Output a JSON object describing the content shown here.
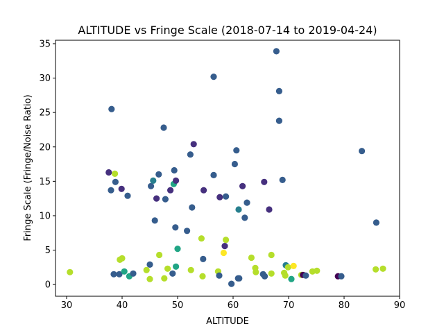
{
  "chart_data": {
    "type": "scatter",
    "title": "ALTITUDE vs Fringe Scale (2018-07-14 to 2019-04-24)",
    "xlabel": "ALTITUDE",
    "ylabel": "Fringe Scale (Fringe/Noise Ratio)",
    "xlim": [
      28,
      90
    ],
    "ylim": [
      -1.7,
      35.5
    ],
    "xticks": [
      30,
      40,
      50,
      60,
      70,
      80,
      90
    ],
    "yticks": [
      0,
      5,
      10,
      15,
      20,
      25,
      30,
      35
    ],
    "grid": false,
    "colormap": "viridis",
    "palette": {
      "purple": "#440154",
      "indigo": "#46307e",
      "blue": "#365d8d",
      "teal": "#277f8e",
      "green": "#21a585",
      "lime": "#b5de2b",
      "yellow": "#fde725"
    },
    "points": [
      {
        "x": 30.6,
        "y": 1.8,
        "c": "lime"
      },
      {
        "x": 37.6,
        "y": 16.3,
        "c": "indigo"
      },
      {
        "x": 38.0,
        "y": 13.7,
        "c": "blue"
      },
      {
        "x": 38.1,
        "y": 25.5,
        "c": "blue"
      },
      {
        "x": 38.5,
        "y": 1.5,
        "c": "blue"
      },
      {
        "x": 38.7,
        "y": 16.1,
        "c": "lime"
      },
      {
        "x": 38.8,
        "y": 14.9,
        "c": "blue"
      },
      {
        "x": 39.5,
        "y": 1.5,
        "c": "blue"
      },
      {
        "x": 39.6,
        "y": 3.6,
        "c": "lime"
      },
      {
        "x": 39.9,
        "y": 13.9,
        "c": "indigo"
      },
      {
        "x": 40.0,
        "y": 3.8,
        "c": "lime"
      },
      {
        "x": 40.4,
        "y": 1.9,
        "c": "green"
      },
      {
        "x": 41.0,
        "y": 12.9,
        "c": "blue"
      },
      {
        "x": 41.3,
        "y": 1.2,
        "c": "green"
      },
      {
        "x": 42.0,
        "y": 1.6,
        "c": "blue"
      },
      {
        "x": 44.4,
        "y": 2.1,
        "c": "lime"
      },
      {
        "x": 45.0,
        "y": 0.8,
        "c": "lime"
      },
      {
        "x": 45.0,
        "y": 2.9,
        "c": "blue"
      },
      {
        "x": 45.2,
        "y": 14.3,
        "c": "blue"
      },
      {
        "x": 45.6,
        "y": 15.1,
        "c": "teal"
      },
      {
        "x": 45.9,
        "y": 9.3,
        "c": "blue"
      },
      {
        "x": 46.2,
        "y": 12.5,
        "c": "indigo"
      },
      {
        "x": 46.6,
        "y": 16.0,
        "c": "blue"
      },
      {
        "x": 46.7,
        "y": 4.3,
        "c": "lime"
      },
      {
        "x": 47.5,
        "y": 22.8,
        "c": "blue"
      },
      {
        "x": 47.6,
        "y": 0.9,
        "c": "lime"
      },
      {
        "x": 47.8,
        "y": 12.4,
        "c": "blue"
      },
      {
        "x": 48.2,
        "y": 2.3,
        "c": "lime"
      },
      {
        "x": 48.7,
        "y": 13.7,
        "c": "indigo"
      },
      {
        "x": 49.1,
        "y": 1.6,
        "c": "blue"
      },
      {
        "x": 49.3,
        "y": 14.6,
        "c": "green"
      },
      {
        "x": 49.4,
        "y": 16.6,
        "c": "blue"
      },
      {
        "x": 49.6,
        "y": 8.3,
        "c": "blue"
      },
      {
        "x": 49.7,
        "y": 2.6,
        "c": "green"
      },
      {
        "x": 49.7,
        "y": 15.1,
        "c": "indigo"
      },
      {
        "x": 50.0,
        "y": 5.2,
        "c": "green"
      },
      {
        "x": 51.7,
        "y": 7.8,
        "c": "blue"
      },
      {
        "x": 52.3,
        "y": 18.9,
        "c": "blue"
      },
      {
        "x": 52.4,
        "y": 2.1,
        "c": "lime"
      },
      {
        "x": 52.6,
        "y": 11.2,
        "c": "blue"
      },
      {
        "x": 52.9,
        "y": 20.4,
        "c": "indigo"
      },
      {
        "x": 54.3,
        "y": 6.7,
        "c": "lime"
      },
      {
        "x": 54.5,
        "y": 1.2,
        "c": "lime"
      },
      {
        "x": 54.6,
        "y": 3.7,
        "c": "blue"
      },
      {
        "x": 54.7,
        "y": 13.7,
        "c": "indigo"
      },
      {
        "x": 56.5,
        "y": 30.2,
        "c": "blue"
      },
      {
        "x": 56.5,
        "y": 15.9,
        "c": "blue"
      },
      {
        "x": 57.3,
        "y": 1.9,
        "c": "lime"
      },
      {
        "x": 57.5,
        "y": 1.3,
        "c": "blue"
      },
      {
        "x": 57.6,
        "y": 12.7,
        "c": "indigo"
      },
      {
        "x": 58.3,
        "y": 4.6,
        "c": "yellow"
      },
      {
        "x": 58.5,
        "y": 5.6,
        "c": "indigo"
      },
      {
        "x": 58.7,
        "y": 6.5,
        "c": "lime"
      },
      {
        "x": 58.7,
        "y": 12.8,
        "c": "blue"
      },
      {
        "x": 59.7,
        "y": 0.1,
        "c": "blue"
      },
      {
        "x": 60.3,
        "y": 17.5,
        "c": "blue"
      },
      {
        "x": 60.6,
        "y": 19.5,
        "c": "blue"
      },
      {
        "x": 60.9,
        "y": 0.9,
        "c": "blue"
      },
      {
        "x": 61.0,
        "y": 10.9,
        "c": "teal"
      },
      {
        "x": 61.1,
        "y": 0.9,
        "c": "blue"
      },
      {
        "x": 61.7,
        "y": 14.3,
        "c": "indigo"
      },
      {
        "x": 62.1,
        "y": 9.7,
        "c": "blue"
      },
      {
        "x": 62.5,
        "y": 11.9,
        "c": "blue"
      },
      {
        "x": 63.3,
        "y": 3.9,
        "c": "lime"
      },
      {
        "x": 64.0,
        "y": 2.4,
        "c": "lime"
      },
      {
        "x": 64.1,
        "y": 1.8,
        "c": "lime"
      },
      {
        "x": 65.4,
        "y": 1.5,
        "c": "blue"
      },
      {
        "x": 65.6,
        "y": 14.9,
        "c": "indigo"
      },
      {
        "x": 65.7,
        "y": 1.2,
        "c": "blue"
      },
      {
        "x": 66.5,
        "y": 10.9,
        "c": "indigo"
      },
      {
        "x": 66.9,
        "y": 1.6,
        "c": "lime"
      },
      {
        "x": 66.9,
        "y": 4.3,
        "c": "lime"
      },
      {
        "x": 67.8,
        "y": 33.9,
        "c": "blue"
      },
      {
        "x": 68.3,
        "y": 28.1,
        "c": "blue"
      },
      {
        "x": 68.3,
        "y": 23.8,
        "c": "blue"
      },
      {
        "x": 68.9,
        "y": 15.2,
        "c": "blue"
      },
      {
        "x": 69.2,
        "y": 1.7,
        "c": "lime"
      },
      {
        "x": 69.4,
        "y": 1.3,
        "c": "lime"
      },
      {
        "x": 69.5,
        "y": 2.8,
        "c": "teal"
      },
      {
        "x": 69.9,
        "y": 2.5,
        "c": "lime"
      },
      {
        "x": 70.5,
        "y": 0.8,
        "c": "green"
      },
      {
        "x": 70.9,
        "y": 2.7,
        "c": "yellow"
      },
      {
        "x": 72.3,
        "y": 1.4,
        "c": "lime"
      },
      {
        "x": 72.6,
        "y": 1.4,
        "c": "purple"
      },
      {
        "x": 73.1,
        "y": 1.3,
        "c": "blue"
      },
      {
        "x": 74.3,
        "y": 1.9,
        "c": "lime"
      },
      {
        "x": 75.1,
        "y": 2.0,
        "c": "lime"
      },
      {
        "x": 78.9,
        "y": 1.2,
        "c": "purple"
      },
      {
        "x": 79.5,
        "y": 1.2,
        "c": "blue"
      },
      {
        "x": 83.2,
        "y": 19.4,
        "c": "blue"
      },
      {
        "x": 85.7,
        "y": 2.2,
        "c": "lime"
      },
      {
        "x": 85.8,
        "y": 9.0,
        "c": "blue"
      },
      {
        "x": 87.0,
        "y": 2.3,
        "c": "lime"
      }
    ]
  }
}
